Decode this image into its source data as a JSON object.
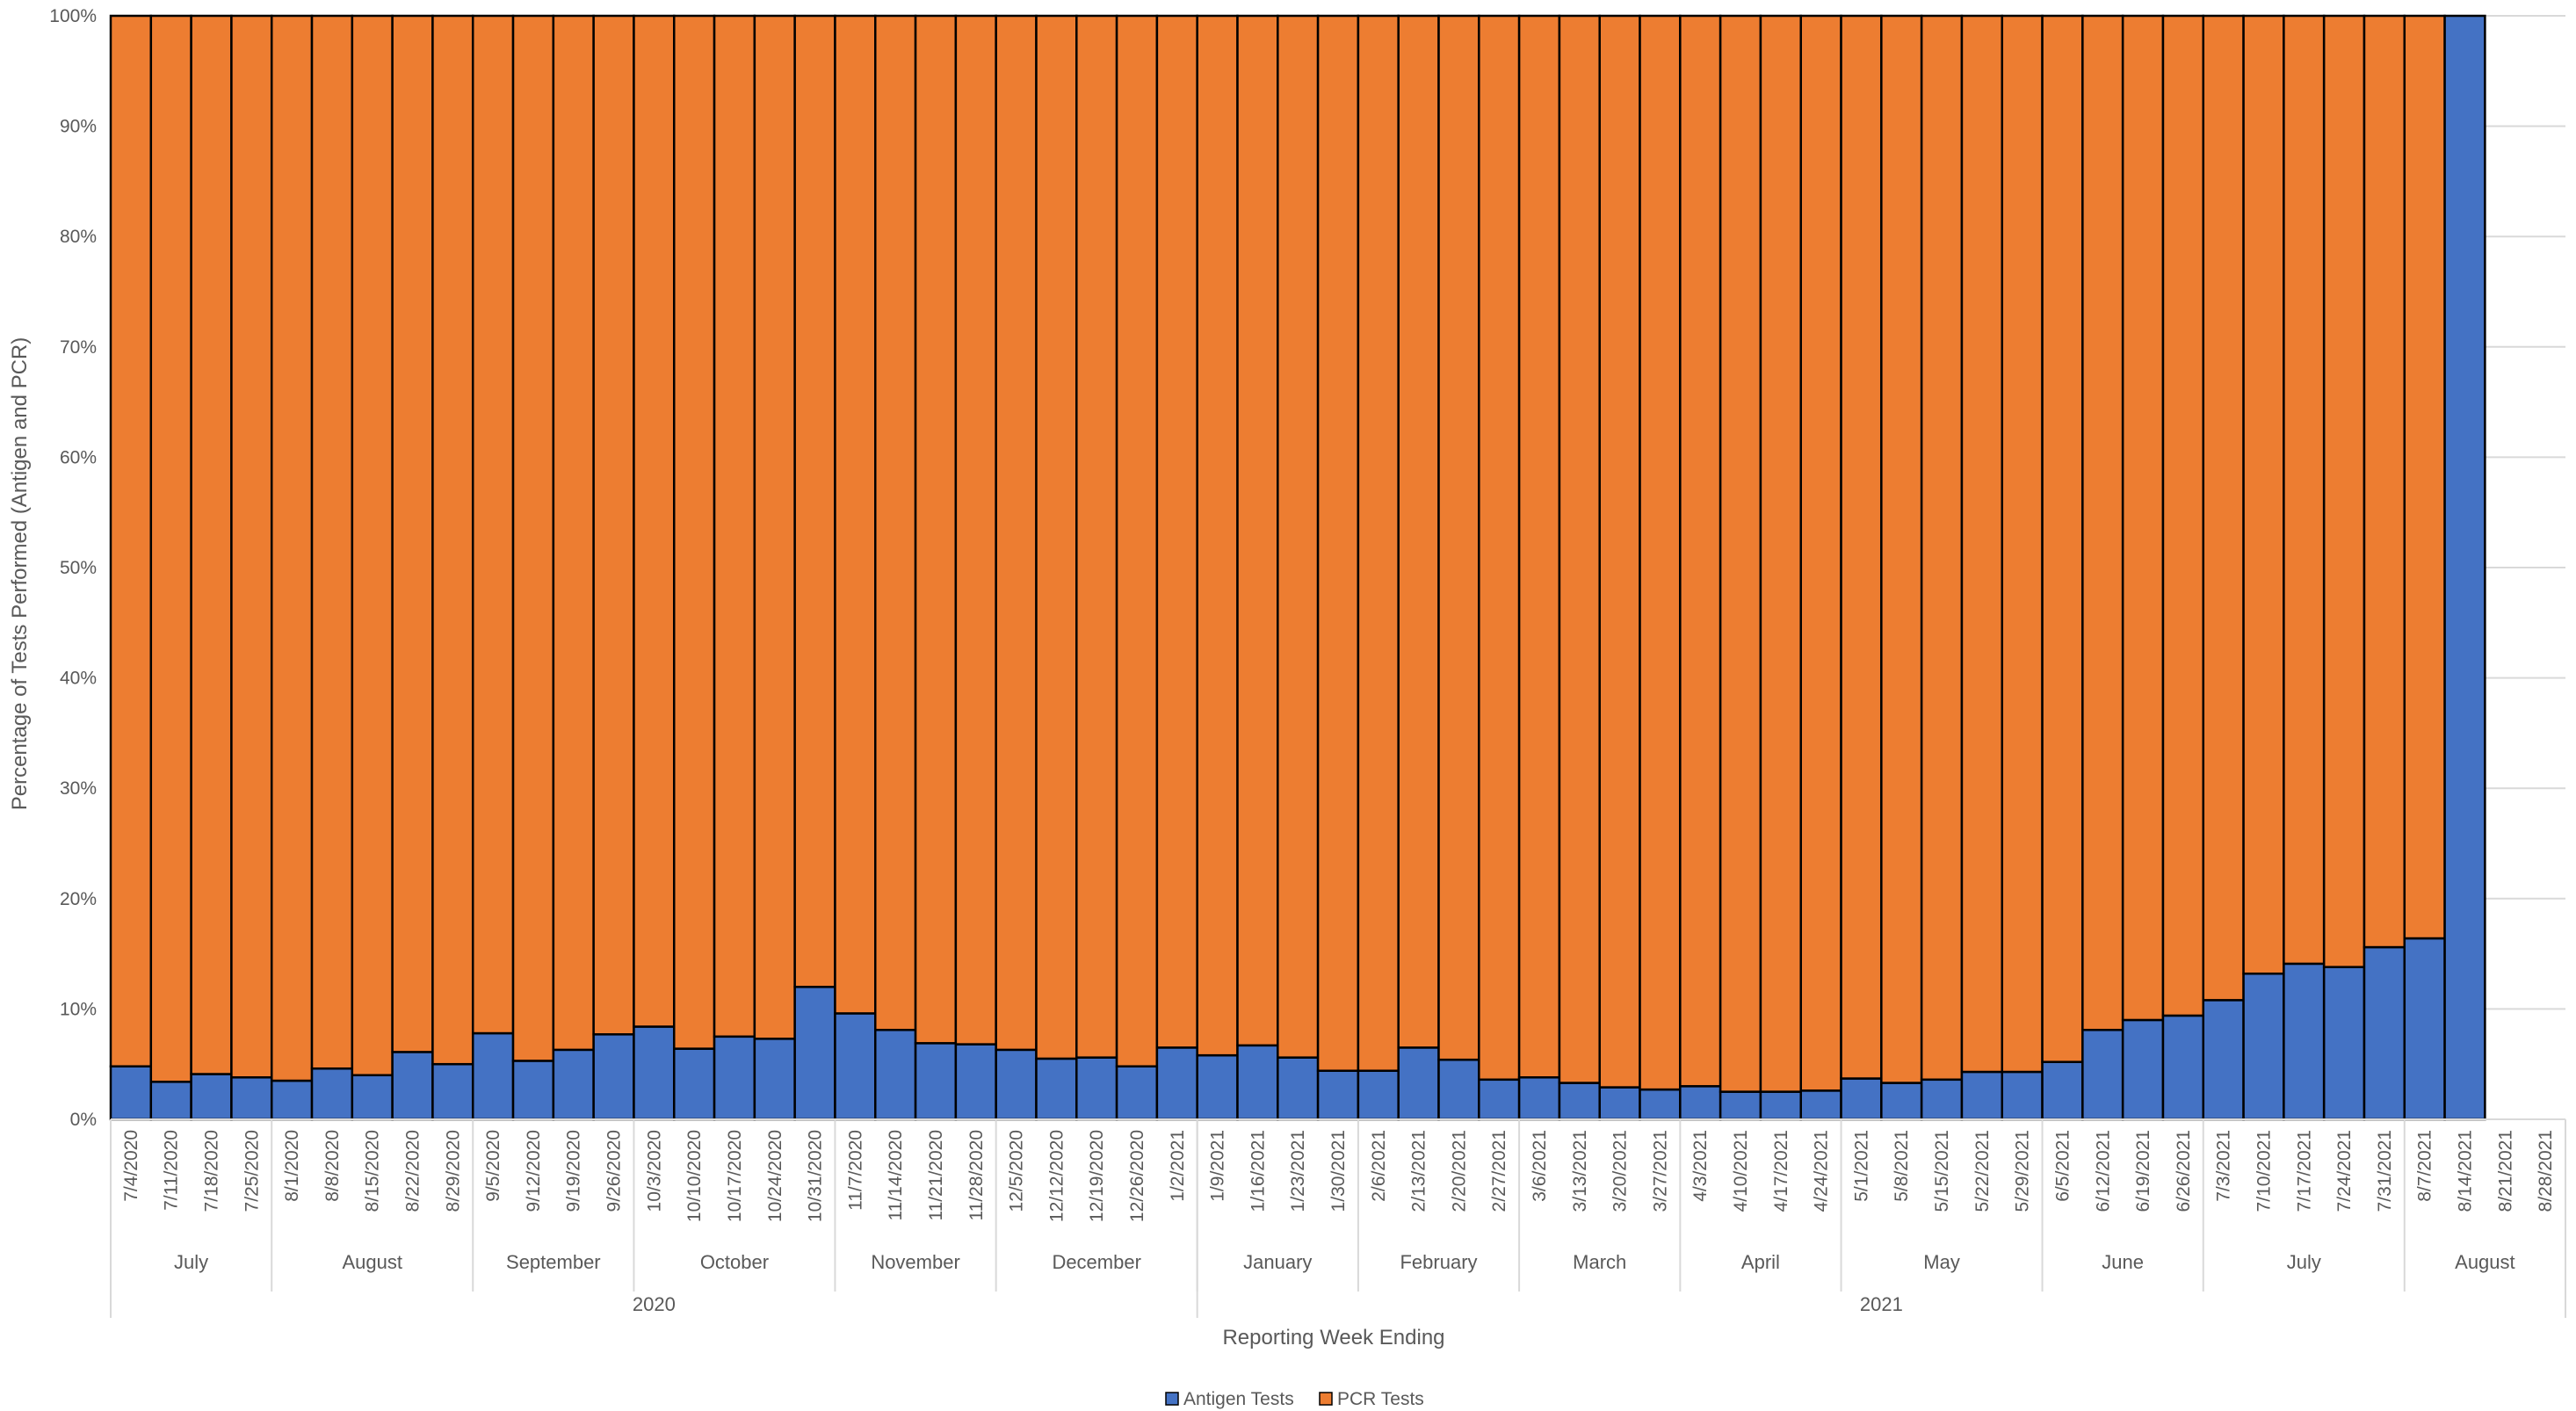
{
  "chart_data": {
    "type": "bar",
    "stacked": true,
    "normalized": true,
    "ylabel": "Percentage of Tests Performed (Antigen and PCR)",
    "xlabel": "Reporting Week Ending",
    "ylim": [
      0,
      100
    ],
    "yticks": [
      "0%",
      "10%",
      "20%",
      "30%",
      "40%",
      "50%",
      "60%",
      "70%",
      "80%",
      "90%",
      "100%"
    ],
    "grid": true,
    "legend_position": "bottom",
    "categories": [
      "7/4/2020",
      "7/11/2020",
      "7/18/2020",
      "7/25/2020",
      "8/1/2020",
      "8/8/2020",
      "8/15/2020",
      "8/22/2020",
      "8/29/2020",
      "9/5/2020",
      "9/12/2020",
      "9/19/2020",
      "9/26/2020",
      "10/3/2020",
      "10/10/2020",
      "10/17/2020",
      "10/24/2020",
      "10/31/2020",
      "11/7/2020",
      "11/14/2020",
      "11/21/2020",
      "11/28/2020",
      "12/5/2020",
      "12/12/2020",
      "12/19/2020",
      "12/26/2020",
      "1/2/2021",
      "1/9/2021",
      "1/16/2021",
      "1/23/2021",
      "1/30/2021",
      "2/6/2021",
      "2/13/2021",
      "2/20/2021",
      "2/27/2021",
      "3/6/2021",
      "3/13/2021",
      "3/20/2021",
      "3/27/2021",
      "4/3/2021",
      "4/10/2021",
      "4/17/2021",
      "4/24/2021",
      "5/1/2021",
      "5/8/2021",
      "5/15/2021",
      "5/22/2021",
      "5/29/2021",
      "6/5/2021",
      "6/12/2021",
      "6/19/2021",
      "6/26/2021",
      "7/3/2021",
      "7/10/2021",
      "7/17/2021",
      "7/24/2021",
      "7/31/2021",
      "8/7/2021",
      "8/14/2021",
      "8/21/2021",
      "8/28/2021"
    ],
    "series": [
      {
        "name": "Antigen Tests",
        "color": "#4472C4",
        "values": [
          4.8,
          3.4,
          4.1,
          3.8,
          3.5,
          4.6,
          4.0,
          6.1,
          5.0,
          7.8,
          5.3,
          6.3,
          7.7,
          8.4,
          6.4,
          7.5,
          7.3,
          12.0,
          9.6,
          8.1,
          6.9,
          6.8,
          6.3,
          5.5,
          5.6,
          4.8,
          6.5,
          5.8,
          6.7,
          5.6,
          4.4,
          4.4,
          6.5,
          5.4,
          3.6,
          3.8,
          3.3,
          2.9,
          2.7,
          3.0,
          2.5,
          2.5,
          2.6,
          3.7,
          3.3,
          3.6,
          4.3,
          4.3,
          5.2,
          8.1,
          9.0,
          9.4,
          10.8,
          13.2,
          14.1,
          13.8,
          15.6,
          16.4,
          100,
          null,
          null
        ]
      },
      {
        "name": "PCR Tests",
        "color": "#ED7D31",
        "values": [
          95.2,
          96.6,
          95.9,
          96.2,
          96.5,
          95.4,
          96.0,
          93.9,
          95.0,
          92.2,
          94.7,
          93.7,
          92.3,
          91.6,
          93.6,
          92.5,
          92.7,
          88.0,
          90.4,
          91.9,
          93.1,
          93.2,
          93.7,
          94.5,
          94.4,
          95.2,
          93.5,
          94.2,
          93.3,
          94.4,
          95.6,
          95.6,
          93.5,
          94.6,
          96.4,
          96.2,
          96.7,
          97.1,
          97.3,
          97.0,
          97.5,
          97.5,
          97.4,
          96.3,
          96.7,
          96.4,
          95.7,
          95.7,
          94.8,
          91.9,
          91.0,
          90.6,
          89.2,
          86.8,
          85.9,
          86.2,
          84.4,
          83.6,
          0,
          null,
          null
        ]
      }
    ],
    "months": [
      {
        "label": "July",
        "start": 0,
        "end": 3
      },
      {
        "label": "August",
        "start": 4,
        "end": 8
      },
      {
        "label": "September",
        "start": 9,
        "end": 12
      },
      {
        "label": "October",
        "start": 13,
        "end": 17
      },
      {
        "label": "November",
        "start": 18,
        "end": 21
      },
      {
        "label": "December",
        "start": 22,
        "end": 26
      },
      {
        "label": "January",
        "start": 27,
        "end": 30
      },
      {
        "label": "February",
        "start": 31,
        "end": 34
      },
      {
        "label": "March",
        "start": 35,
        "end": 38
      },
      {
        "label": "April",
        "start": 39,
        "end": 42
      },
      {
        "label": "May",
        "start": 43,
        "end": 47
      },
      {
        "label": "June",
        "start": 48,
        "end": 51
      },
      {
        "label": "July",
        "start": 52,
        "end": 56
      },
      {
        "label": "August",
        "start": 57,
        "end": 60
      }
    ],
    "years": [
      {
        "label": "2020",
        "start": 0,
        "end": 26
      },
      {
        "label": "2021",
        "start": 27,
        "end": 60
      }
    ]
  }
}
